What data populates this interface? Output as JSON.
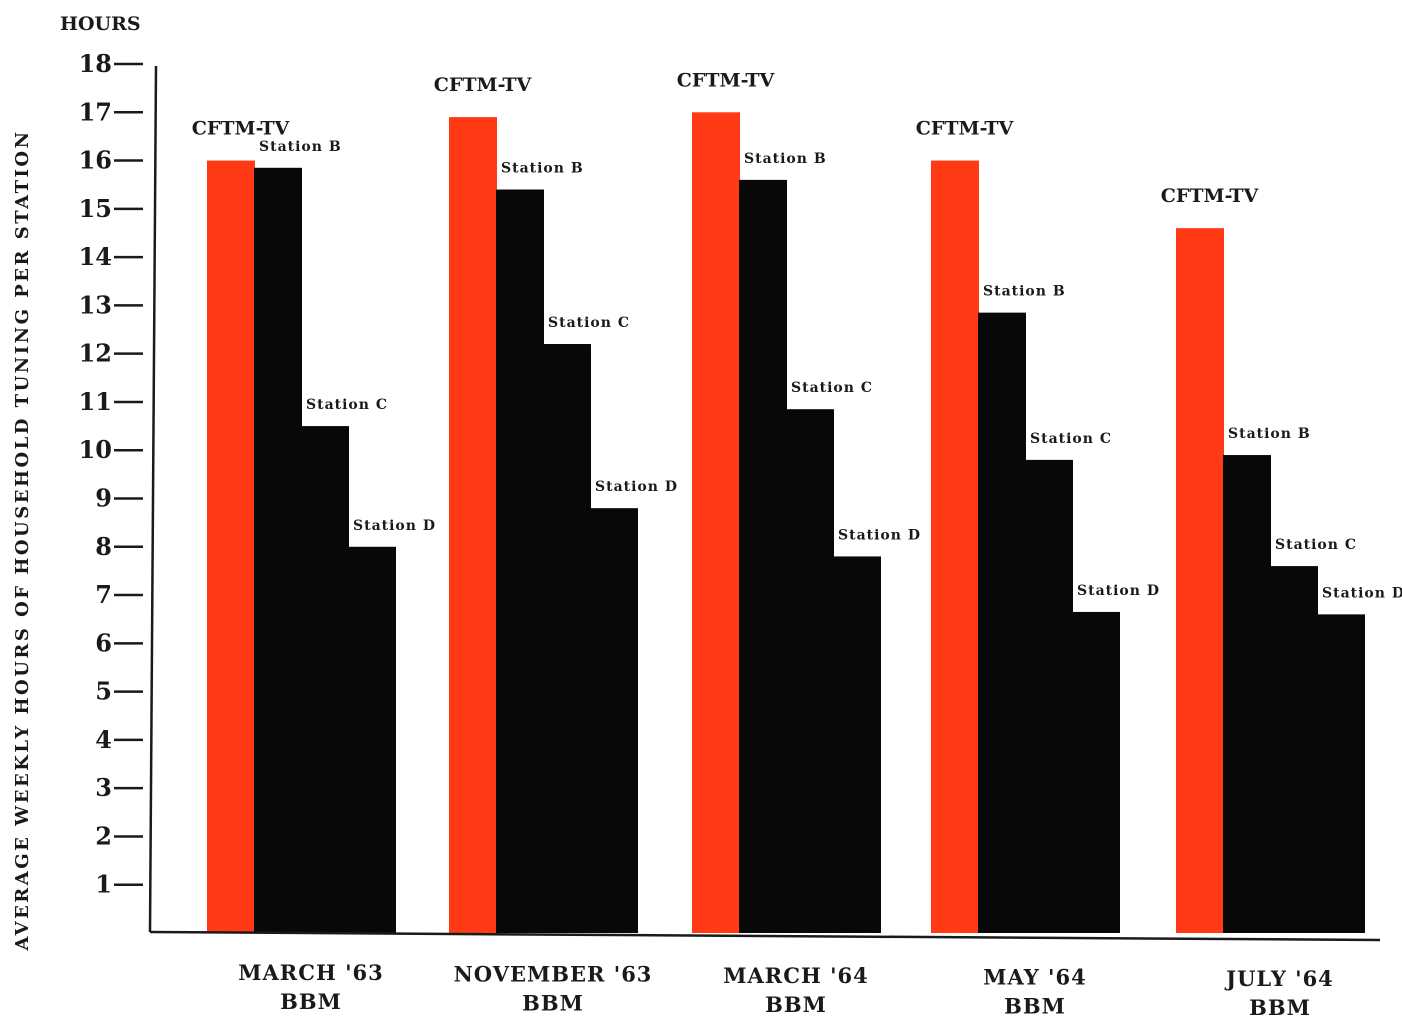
{
  "chart_data": {
    "type": "bar",
    "ylabel": "AVERAGE WEEKLY HOURS OF HOUSEHOLD TUNING PER STATION",
    "yunit": "HOURS",
    "ylim": [
      0,
      18
    ],
    "yticks": [
      1,
      2,
      3,
      4,
      5,
      6,
      7,
      8,
      9,
      10,
      11,
      12,
      13,
      14,
      15,
      16,
      17,
      18
    ],
    "groups": [
      {
        "label_line1": "MARCH '63",
        "label_line2": "BBM",
        "bars": [
          {
            "name": "CFTM-TV",
            "value": 16.0
          },
          {
            "name": "Station B",
            "value": 15.85
          },
          {
            "name": "Station C",
            "value": 10.5
          },
          {
            "name": "Station D",
            "value": 8.0
          }
        ]
      },
      {
        "label_line1": "NOVEMBER '63",
        "label_line2": "BBM",
        "bars": [
          {
            "name": "CFTM-TV",
            "value": 16.9
          },
          {
            "name": "Station B",
            "value": 15.4
          },
          {
            "name": "Station C",
            "value": 12.2
          },
          {
            "name": "Station D",
            "value": 8.8
          }
        ]
      },
      {
        "label_line1": "MARCH '64",
        "label_line2": "BBM",
        "bars": [
          {
            "name": "CFTM-TV",
            "value": 17.0
          },
          {
            "name": "Station B",
            "value": 15.6
          },
          {
            "name": "Station C",
            "value": 10.85
          },
          {
            "name": "Station D",
            "value": 7.8
          }
        ]
      },
      {
        "label_line1": "MAY '64",
        "label_line2": "BBM",
        "bars": [
          {
            "name": "CFTM-TV",
            "value": 16.0
          },
          {
            "name": "Station B",
            "value": 12.85
          },
          {
            "name": "Station C",
            "value": 9.8
          },
          {
            "name": "Station D",
            "value": 6.65
          }
        ]
      },
      {
        "label_line1": "JULY '64",
        "label_line2": "BBM",
        "bars": [
          {
            "name": "CFTM-TV",
            "value": 14.6
          },
          {
            "name": "Station B",
            "value": 9.9
          },
          {
            "name": "Station C",
            "value": 7.6
          },
          {
            "name": "Station D",
            "value": 6.6
          }
        ]
      }
    ],
    "colors": {
      "CFTM-TV": "#ff3a14",
      "others": "#080808",
      "axis": "#1a1a1a"
    }
  }
}
